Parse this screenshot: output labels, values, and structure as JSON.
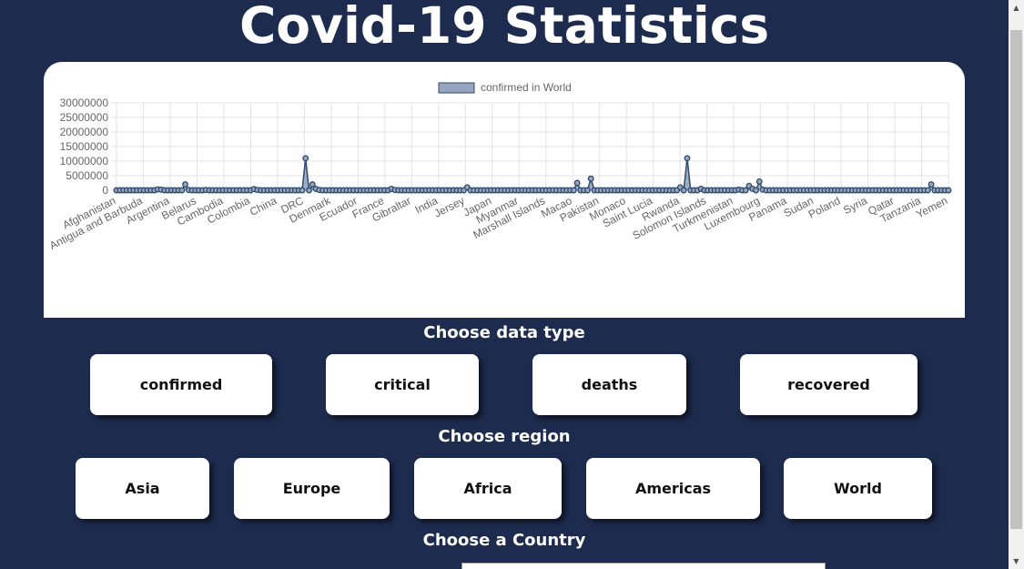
{
  "page": {
    "title": "Covid-19 Statistics"
  },
  "chart_data": {
    "type": "line",
    "legend": "confirmed in World",
    "legend_position": "top",
    "fill_color": "#95a5bf",
    "line_color": "#2f4a6a",
    "ylim": [
      0,
      30000000
    ],
    "y_ticks": [
      "30000000",
      "25000000",
      "20000000",
      "15000000",
      "10000000",
      "5000000",
      "0"
    ],
    "x_tick_labels": [
      "Afghanistan",
      "Antigua and Barbuda",
      "Argentina",
      "Belarus",
      "Cambodia",
      "Colombia",
      "China",
      "DRC",
      "Denmark",
      "Ecuador",
      "France",
      "Gibraltar",
      "India",
      "Jersey",
      "Japan",
      "Myanmar",
      "Marshall Islands",
      "Macao",
      "Pakistan",
      "Monaco",
      "Saint Lucia",
      "Rwanda",
      "Solomon Islands",
      "Turkmenistan",
      "Luxembourg",
      "Panama",
      "Sudan",
      "Poland",
      "Syria",
      "Qatar",
      "Tanzania",
      "Yemen"
    ],
    "n_points": 228,
    "values": [
      0,
      0,
      0,
      0,
      0,
      0,
      0,
      0,
      0,
      0,
      0,
      0,
      300000,
      200000,
      0,
      0,
      0,
      0,
      0,
      0,
      2000000,
      100000,
      0,
      0,
      0,
      0,
      100000,
      0,
      0,
      0,
      0,
      0,
      0,
      0,
      0,
      0,
      0,
      0,
      0,
      0,
      400000,
      100000,
      0,
      0,
      0,
      0,
      0,
      0,
      0,
      0,
      0,
      0,
      0,
      0,
      0,
      11000000,
      0,
      2000000,
      500000,
      100000,
      0,
      0,
      0,
      0,
      0,
      0,
      0,
      0,
      0,
      0,
      0,
      0,
      0,
      0,
      0,
      0,
      0,
      0,
      0,
      0,
      500000,
      100000,
      0,
      0,
      0,
      0,
      0,
      0,
      0,
      0,
      0,
      0,
      0,
      0,
      0,
      0,
      0,
      0,
      0,
      0,
      0,
      0,
      1000000,
      0,
      0,
      0,
      0,
      0,
      0,
      0,
      0,
      0,
      0,
      0,
      0,
      0,
      0,
      0,
      0,
      0,
      0,
      0,
      0,
      0,
      0,
      0,
      0,
      0,
      0,
      0,
      0,
      0,
      0,
      0,
      2500000,
      0,
      0,
      0,
      4000000,
      0,
      0,
      0,
      0,
      0,
      0,
      0,
      0,
      0,
      0,
      0,
      0,
      0,
      0,
      0,
      0,
      0,
      0,
      0,
      0,
      0,
      0,
      0,
      0,
      0,
      1000000,
      0,
      11000000,
      0,
      0,
      0,
      500000,
      0,
      0,
      0,
      0,
      0,
      0,
      0,
      0,
      0,
      0,
      200000,
      0,
      0,
      1500000,
      500000,
      0,
      3000000,
      200000,
      0,
      0,
      0,
      0,
      0,
      0,
      0,
      0,
      0,
      0,
      0,
      0,
      0,
      0,
      0,
      0,
      0,
      0,
      0,
      0,
      0,
      0,
      0,
      0,
      0,
      0,
      0,
      0,
      0,
      0,
      0,
      0,
      0,
      0,
      0,
      0,
      0,
      0,
      0,
      0,
      0,
      0,
      0,
      0,
      0,
      0,
      0,
      0,
      2000000,
      0,
      0,
      0,
      0,
      0
    ]
  },
  "data_type": {
    "title": "Choose data type",
    "buttons": [
      "confirmed",
      "critical",
      "deaths",
      "recovered"
    ]
  },
  "region": {
    "title": "Choose region",
    "buttons": [
      "Asia",
      "Europe",
      "Africa",
      "Americas",
      "World"
    ]
  },
  "country": {
    "title": "Choose a Country"
  }
}
